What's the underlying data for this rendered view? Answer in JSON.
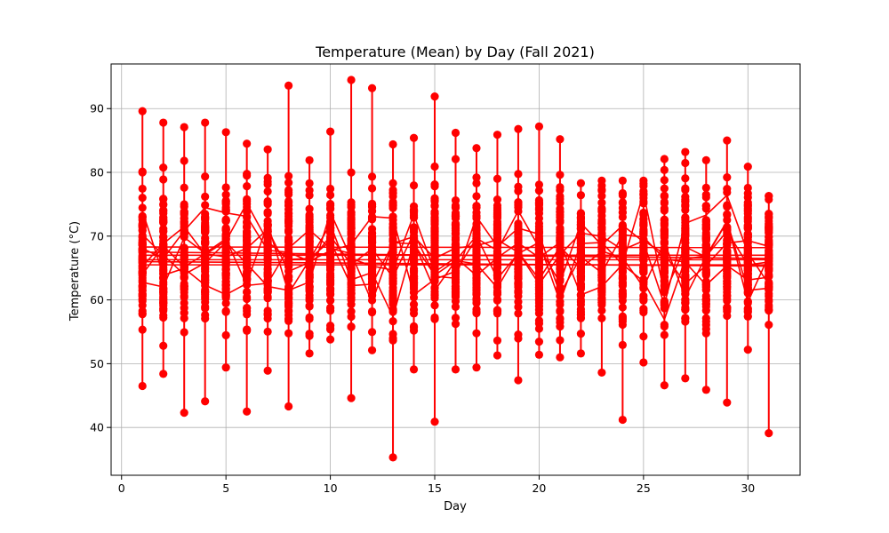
{
  "chart_data": {
    "type": "line",
    "title": "Temperature (Mean) by Day (Fall 2021)",
    "xlabel": "Day",
    "ylabel": "Temperature (°C)",
    "xlim": [
      -0.5,
      32.5
    ],
    "ylim": [
      32.5,
      97
    ],
    "xticks": [
      0,
      5,
      10,
      15,
      20,
      25,
      30
    ],
    "yticks": [
      40,
      50,
      60,
      70,
      80,
      90
    ],
    "grid": true,
    "legend": "none",
    "series_color": "#ff0000",
    "days": [
      1,
      2,
      3,
      4,
      5,
      6,
      7,
      8,
      9,
      10,
      11,
      12,
      13,
      14,
      15,
      16,
      17,
      18,
      19,
      20,
      21,
      22,
      23,
      24,
      25,
      26,
      27,
      28,
      29,
      30,
      31
    ],
    "day_min": [
      46.5,
      48.4,
      42.3,
      44.1,
      49.4,
      42.5,
      48.9,
      43.3,
      51.6,
      53.8,
      44.6,
      52.1,
      35.3,
      49.1,
      40.9,
      49.1,
      49.4,
      51.3,
      47.4,
      51.4,
      51.0,
      51.6,
      48.6,
      41.2,
      50.2,
      46.6,
      47.7,
      45.9,
      43.9,
      52.2,
      39.1
    ],
    "day_max": [
      89.6,
      87.8,
      87.1,
      87.8,
      86.3,
      84.5,
      83.6,
      93.6,
      81.9,
      86.4,
      94.5,
      93.2,
      84.4,
      85.4,
      91.9,
      86.2,
      83.8,
      85.9,
      86.8,
      87.2,
      85.2,
      78.3,
      78.7,
      78.7,
      78.7,
      82.1,
      83.2,
      81.9,
      85.0,
      80.9,
      76.3
    ],
    "passes": [
      {
        "start": 66.3,
        "end": 66.3
      },
      {
        "start": 67.5,
        "end": 66.5
      },
      {
        "start": 68.3,
        "end": 68.2
      },
      {
        "start": 66.0,
        "end": 65.3
      },
      {
        "start": 67.0,
        "end": 67.0
      },
      {
        "start": 65.5,
        "end": 65.5
      }
    ]
  }
}
